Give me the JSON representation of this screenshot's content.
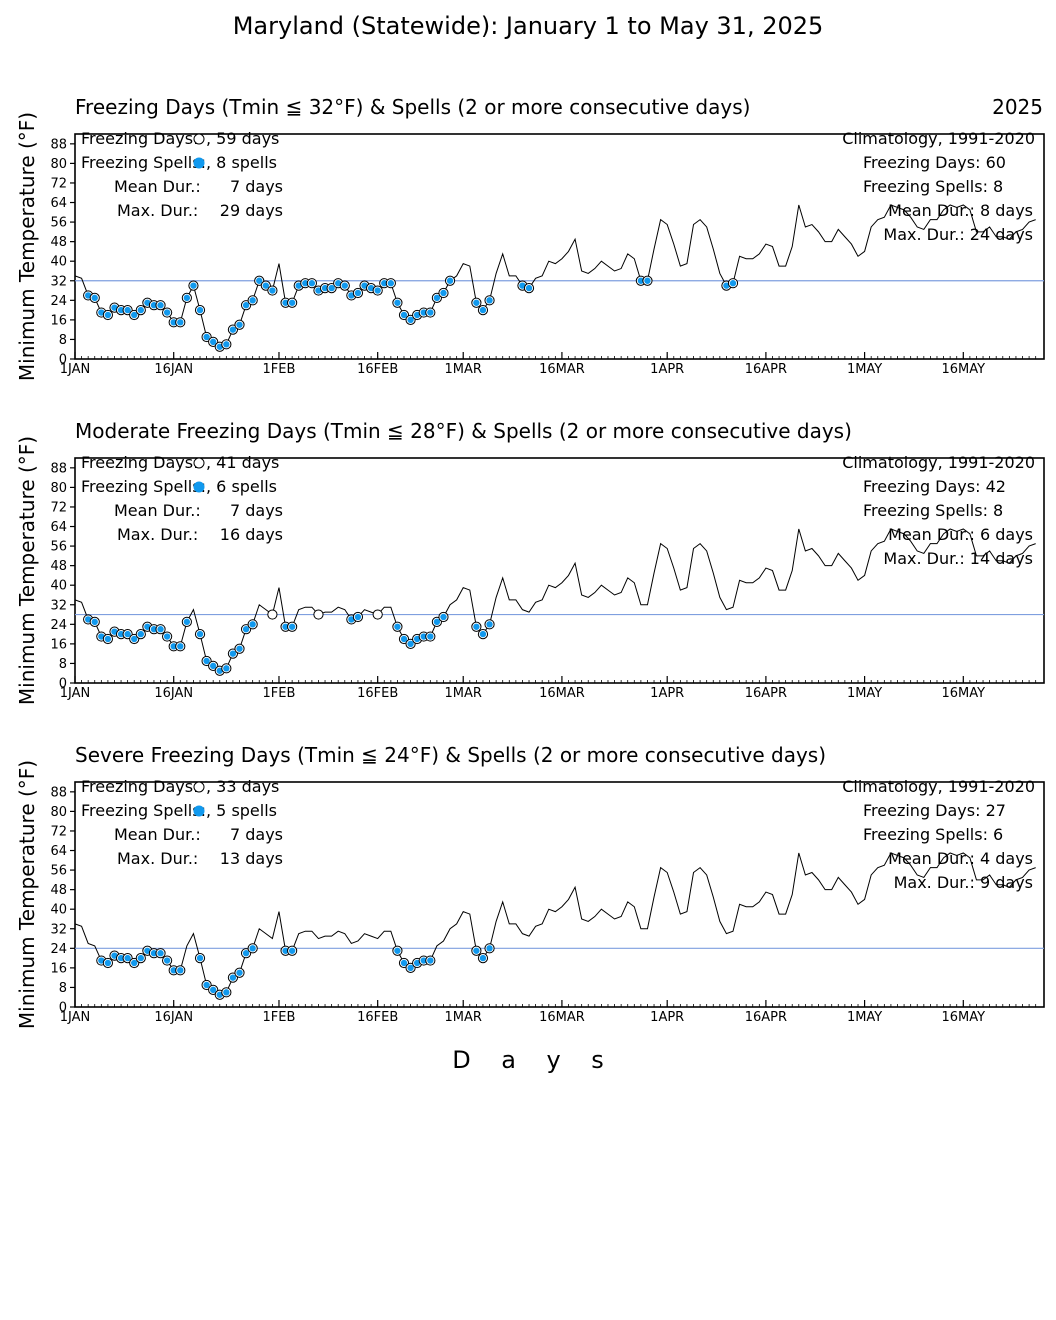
{
  "header": {
    "title": "Maryland (Statewide): January 1 to May 31, 2025",
    "xlabel": "D    a    y    s"
  },
  "colors": {
    "spell_fill": "#1199ee",
    "threshold_line": "#7f9fdf",
    "line": "#000000"
  },
  "chart_data": [
    {
      "type": "line",
      "title": "Freezing Days (Tmin ≦ 32°F) & Spells (2 or more consecutive days)",
      "year_label": "2025",
      "ylabel": "Minimum Temperature (°F)",
      "ylim": [
        0,
        92
      ],
      "yticks": [
        0,
        8,
        16,
        24,
        32,
        40,
        48,
        56,
        64,
        72,
        80,
        88
      ],
      "xticks": [
        {
          "day": 1,
          "label": "1JAN"
        },
        {
          "day": 16,
          "label": "16JAN"
        },
        {
          "day": 32,
          "label": "1FEB"
        },
        {
          "day": 47,
          "label": "16FEB"
        },
        {
          "day": 60,
          "label": "1MAR"
        },
        {
          "day": 75,
          "label": "16MAR"
        },
        {
          "day": 91,
          "label": "1APR"
        },
        {
          "day": 106,
          "label": "16APR"
        },
        {
          "day": 121,
          "label": "1MAY"
        },
        {
          "day": 136,
          "label": "16MAY"
        }
      ],
      "threshold": 32,
      "info_left": {
        "days_label": "Freezing Days:",
        "days_value": ",   59 days",
        "spells_label": "Freezing Spells:",
        "spells_value": ",    8 spells",
        "mean_label": "Mean Dur.:",
        "mean_value": "7 days",
        "max_label": "Max. Dur.:",
        "max_value": "29 days"
      },
      "info_right": {
        "clim": "Climatology, 1991-2020",
        "days": "Freezing Days:  60",
        "spells": "Freezing Spells:  8",
        "mean": "Mean Dur.:  8 days",
        "max": "Max. Dur.: 24 days"
      }
    },
    {
      "type": "line",
      "title": "Moderate Freezing Days (Tmin ≦ 28°F) & Spells (2 or more consecutive days)",
      "ylabel": "Minimum Temperature (°F)",
      "ylim": [
        0,
        92
      ],
      "yticks": [
        0,
        8,
        16,
        24,
        32,
        40,
        48,
        56,
        64,
        72,
        80,
        88
      ],
      "xticks": [
        {
          "day": 1,
          "label": "1JAN"
        },
        {
          "day": 16,
          "label": "16JAN"
        },
        {
          "day": 32,
          "label": "1FEB"
        },
        {
          "day": 47,
          "label": "16FEB"
        },
        {
          "day": 60,
          "label": "1MAR"
        },
        {
          "day": 75,
          "label": "16MAR"
        },
        {
          "day": 91,
          "label": "1APR"
        },
        {
          "day": 106,
          "label": "16APR"
        },
        {
          "day": 121,
          "label": "1MAY"
        },
        {
          "day": 136,
          "label": "16MAY"
        }
      ],
      "threshold": 28,
      "info_left": {
        "days_label": "Freezing Days:",
        "days_value": ",   41 days",
        "spells_label": "Freezing Spells:",
        "spells_value": ",    6 spells",
        "mean_label": "Mean Dur.:",
        "mean_value": "7 days",
        "max_label": "Max. Dur.:",
        "max_value": "16 days"
      },
      "info_right": {
        "clim": "Climatology, 1991-2020",
        "days": "Freezing Days:  42",
        "spells": "Freezing Spells:  8",
        "mean": "Mean Dur.:  6 days",
        "max": "Max. Dur.: 14 days"
      }
    },
    {
      "type": "line",
      "title": "Severe Freezing Days (Tmin ≦ 24°F) & Spells (2 or more consecutive days)",
      "ylabel": "Minimum Temperature (°F)",
      "ylim": [
        0,
        92
      ],
      "yticks": [
        0,
        8,
        16,
        24,
        32,
        40,
        48,
        56,
        64,
        72,
        80,
        88
      ],
      "xticks": [
        {
          "day": 1,
          "label": "1JAN"
        },
        {
          "day": 16,
          "label": "16JAN"
        },
        {
          "day": 32,
          "label": "1FEB"
        },
        {
          "day": 47,
          "label": "16FEB"
        },
        {
          "day": 60,
          "label": "1MAR"
        },
        {
          "day": 75,
          "label": "16MAR"
        },
        {
          "day": 91,
          "label": "1APR"
        },
        {
          "day": 106,
          "label": "16APR"
        },
        {
          "day": 121,
          "label": "1MAY"
        },
        {
          "day": 136,
          "label": "16MAY"
        }
      ],
      "threshold": 24,
      "info_left": {
        "days_label": "Freezing Days:",
        "days_value": ",   33 days",
        "spells_label": "Freezing Spells:",
        "spells_value": ",    5 spells",
        "mean_label": "Mean Dur.:",
        "mean_value": "7 days",
        "max_label": "Max. Dur.:",
        "max_value": "13 days"
      },
      "info_right": {
        "clim": "Climatology, 1991-2020",
        "days": "Freezing Days:  27",
        "spells": "Freezing Spells:  6",
        "mean": "Mean Dur.:  4 days",
        "max": "Max. Dur.:  9 days"
      }
    }
  ],
  "series": {
    "name": "",
    "start_date": "2025-01-01",
    "values": [
      34,
      33,
      26,
      25,
      19,
      18,
      21,
      20,
      20,
      18,
      20,
      23,
      22,
      22,
      19,
      15,
      15,
      25,
      30,
      20,
      9,
      7,
      5,
      6,
      12,
      14,
      22,
      24,
      32,
      30,
      28,
      39,
      23,
      23,
      30,
      31,
      31,
      28,
      29,
      29,
      31,
      30,
      26,
      27,
      30,
      29,
      28,
      31,
      31,
      23,
      18,
      16,
      18,
      19,
      19,
      25,
      27,
      32,
      34,
      39,
      38,
      23,
      20,
      24,
      35,
      43,
      34,
      34,
      30,
      29,
      33,
      34,
      40,
      39,
      41,
      44,
      49,
      36,
      35,
      37,
      40,
      38,
      36,
      37,
      43,
      41,
      32,
      32,
      45,
      57,
      55,
      47,
      38,
      39,
      55,
      57,
      54,
      45,
      35,
      30,
      31,
      42,
      41,
      41,
      43,
      47,
      46,
      38,
      38,
      46,
      63,
      54,
      55,
      52,
      48,
      48,
      53,
      50,
      47,
      42,
      44,
      54,
      57,
      58,
      63,
      62,
      61,
      58,
      54,
      53,
      57,
      57,
      61,
      63,
      62,
      63,
      61,
      52,
      52,
      54,
      50,
      50,
      49,
      52,
      53,
      56,
      57
    ]
  }
}
